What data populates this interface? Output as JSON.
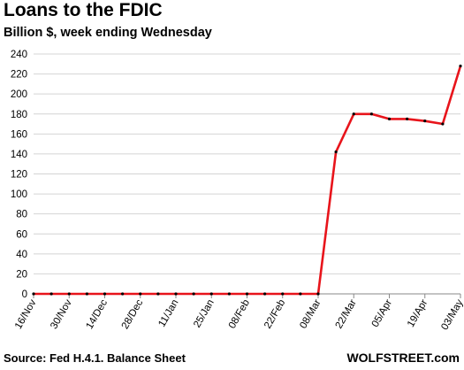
{
  "chart_data": {
    "type": "line",
    "title": "Loans to the FDIC",
    "subtitle": "Billion $, week ending Wednesday",
    "xlabel": "",
    "ylabel": "",
    "ylim": [
      0,
      240
    ],
    "yticks": [
      0,
      20,
      40,
      60,
      80,
      100,
      120,
      140,
      160,
      180,
      200,
      220,
      240
    ],
    "grid": "horizontal",
    "legend": "none",
    "x_tick_labels": [
      "16/Nov",
      "30/Nov",
      "14/Dec",
      "28/Dec",
      "11/Jan",
      "25/Jan",
      "08/Feb",
      "22/Feb",
      "08/Mar",
      "22/Mar",
      "05/Apr",
      "19/Apr",
      "03/May"
    ],
    "x": [
      "16/Nov",
      "23/Nov",
      "30/Nov",
      "07/Dec",
      "14/Dec",
      "21/Dec",
      "28/Dec",
      "04/Jan",
      "11/Jan",
      "18/Jan",
      "25/Jan",
      "01/Feb",
      "08/Feb",
      "15/Feb",
      "22/Feb",
      "01/Mar",
      "08/Mar",
      "15/Mar",
      "22/Mar",
      "29/Mar",
      "05/Apr",
      "12/Apr",
      "19/Apr",
      "26/Apr",
      "03/May"
    ],
    "series": [
      {
        "color": "#e8141b",
        "values": [
          0,
          0,
          0,
          0,
          0,
          0,
          0,
          0,
          0,
          0,
          0,
          0,
          0,
          0,
          0,
          0,
          0,
          142,
          180,
          180,
          175,
          175,
          173,
          170,
          228
        ]
      }
    ],
    "source": "Source: Fed H.4.1. Balance Sheet",
    "brand": "WOLFSTREET.com"
  }
}
